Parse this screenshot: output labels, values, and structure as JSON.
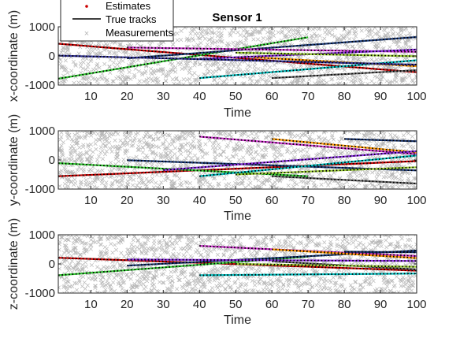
{
  "chart_data": {
    "type": "line",
    "title": "Sensor 1",
    "legend": {
      "placement": "top-left",
      "entries": [
        {
          "label": "Estimates",
          "marker": "dot",
          "color": "#cc0000"
        },
        {
          "label": "True tracks",
          "marker": "line",
          "color": "#000000"
        },
        {
          "label": "Measurements",
          "marker": "x",
          "color": "#b4b4b4"
        }
      ]
    },
    "xlim": [
      1,
      100
    ],
    "ylim": [
      -1000,
      1000
    ],
    "xticks": [
      10,
      20,
      30,
      40,
      50,
      60,
      70,
      80,
      90,
      100
    ],
    "yticks": [
      -1000,
      0,
      1000
    ],
    "grid": false,
    "panels": [
      {
        "xlabel": "Time",
        "ylabel": "x-coordinate (m)",
        "series": [
          {
            "color": "#cc0000",
            "x": [
              1,
              100
            ],
            "y": [
              420,
              -560
            ]
          },
          {
            "color": "#33cc33",
            "x": [
              1,
              70
            ],
            "y": [
              -780,
              640
            ]
          },
          {
            "color": "#1a3a7a",
            "x": [
              20,
              100
            ],
            "y": [
              -80,
              650
            ]
          },
          {
            "color": "#cc33cc",
            "x": [
              20,
              100
            ],
            "y": [
              290,
              140
            ]
          },
          {
            "color": "#00bfbf",
            "x": [
              40,
              100
            ],
            "y": [
              -760,
              -150
            ]
          },
          {
            "color": "#ff9900",
            "x": [
              55,
              100
            ],
            "y": [
              -50,
              -350
            ]
          },
          {
            "color": "#666666",
            "x": [
              60,
              100
            ],
            "y": [
              -760,
              -490
            ]
          },
          {
            "color": "#8a2be2",
            "x": [
              40,
              100
            ],
            "y": [
              -100,
              220
            ]
          },
          {
            "color": "#333399",
            "x": [
              1,
              100
            ],
            "y": [
              10,
              -300
            ]
          },
          {
            "color": "#9acd32",
            "x": [
              50,
              100
            ],
            "y": [
              110,
              -10
            ]
          }
        ]
      },
      {
        "xlabel": "Time",
        "ylabel": "y-coordinate (m)",
        "series": [
          {
            "color": "#cc0000",
            "x": [
              1,
              100
            ],
            "y": [
              -560,
              -40
            ]
          },
          {
            "color": "#33cc33",
            "x": [
              1,
              70
            ],
            "y": [
              -110,
              -560
            ]
          },
          {
            "color": "#1a3a7a",
            "x": [
              20,
              100
            ],
            "y": [
              -10,
              -360
            ]
          },
          {
            "color": "#cc33cc",
            "x": [
              40,
              100
            ],
            "y": [
              800,
              200
            ]
          },
          {
            "color": "#00bfbf",
            "x": [
              40,
              100
            ],
            "y": [
              -560,
              150
            ]
          },
          {
            "color": "#ff9900",
            "x": [
              60,
              100
            ],
            "y": [
              720,
              260
            ]
          },
          {
            "color": "#666666",
            "x": [
              60,
              100
            ],
            "y": [
              -560,
              -810
            ]
          },
          {
            "color": "#14306b",
            "x": [
              80,
              100
            ],
            "y": [
              720,
              640
            ]
          },
          {
            "color": "#8a2be2",
            "x": [
              30,
              100
            ],
            "y": [
              -350,
              300
            ]
          },
          {
            "color": "#9acd32",
            "x": [
              50,
              100
            ],
            "y": [
              -500,
              -250
            ]
          }
        ]
      },
      {
        "xlabel": "Time",
        "ylabel": "z-coordinate (m)",
        "series": [
          {
            "color": "#cc0000",
            "x": [
              1,
              100
            ],
            "y": [
              210,
              -230
            ]
          },
          {
            "color": "#33cc33",
            "x": [
              1,
              70
            ],
            "y": [
              -390,
              250
            ]
          },
          {
            "color": "#1a3a7a",
            "x": [
              20,
              100
            ],
            "y": [
              -60,
              460
            ]
          },
          {
            "color": "#cc33cc",
            "x": [
              40,
              100
            ],
            "y": [
              620,
              270
            ]
          },
          {
            "color": "#00bfbf",
            "x": [
              40,
              100
            ],
            "y": [
              -390,
              -330
            ]
          },
          {
            "color": "#ff9900",
            "x": [
              60,
              100
            ],
            "y": [
              500,
              200
            ]
          },
          {
            "color": "#666666",
            "x": [
              60,
              100
            ],
            "y": [
              90,
              -190
            ]
          },
          {
            "color": "#14306b",
            "x": [
              80,
              100
            ],
            "y": [
              420,
              400
            ]
          },
          {
            "color": "#8a2be2",
            "x": [
              20,
              100
            ],
            "y": [
              150,
              100
            ]
          },
          {
            "color": "#9acd32",
            "x": [
              50,
              100
            ],
            "y": [
              0,
              -100
            ]
          }
        ]
      }
    ]
  }
}
